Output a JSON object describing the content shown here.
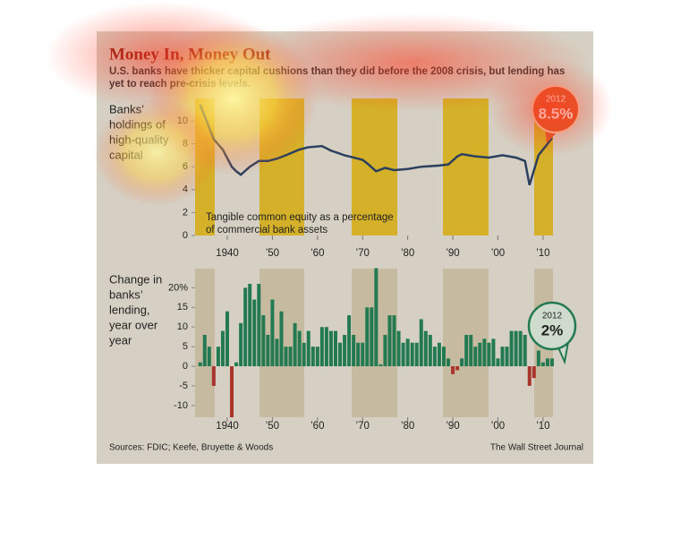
{
  "header": {
    "title": "Money In, Money Out",
    "subtitle": [
      "U.S. banks have thicker capital cushions than they did before the 2008 crisis, but lending has",
      "yet to reach pre-crisis levels."
    ]
  },
  "chart_data": [
    {
      "type": "line",
      "label": [
        "Banks’",
        "holdings of",
        "high-quality",
        "capital"
      ],
      "annotation": [
        "Tangible common equity as a percentage",
        "of commercial bank assets"
      ],
      "callout": {
        "year": "2012",
        "value": "8.5%"
      },
      "color": "#2b3f5e",
      "x": [
        1934,
        1937,
        1939,
        1941,
        1942,
        1943,
        1945,
        1947,
        1949,
        1951,
        1953,
        1956,
        1958,
        1961,
        1963,
        1966,
        1968,
        1970,
        1971,
        1973,
        1975,
        1977,
        1980,
        1983,
        1987,
        1989,
        1991,
        1992,
        1995,
        1998,
        2001,
        2004,
        2006,
        2007,
        2009,
        2011,
        2012
      ],
      "values": [
        11.4,
        8.4,
        7.5,
        6.0,
        5.6,
        5.3,
        6.0,
        6.5,
        6.5,
        6.7,
        7.0,
        7.5,
        7.7,
        7.8,
        7.4,
        7.0,
        6.8,
        6.6,
        6.3,
        5.6,
        5.9,
        5.7,
        5.8,
        6.0,
        6.1,
        6.2,
        6.9,
        7.1,
        6.9,
        6.8,
        7.0,
        6.8,
        6.5,
        4.4,
        7.0,
        8.0,
        8.5
      ],
      "xlim": [
        1933,
        2013
      ],
      "ylim": [
        0,
        12
      ],
      "yticks": [
        0,
        2,
        4,
        6,
        8,
        10
      ],
      "xticks": [
        1940,
        {
          "value": 1950,
          "label": "’50"
        },
        {
          "value": 1960,
          "label": "’60"
        },
        {
          "value": 1970,
          "label": "’70"
        },
        {
          "value": 1980,
          "label": "’80"
        },
        {
          "value": 1990,
          "label": "’90"
        },
        {
          "value": 2000,
          "label": "’00"
        },
        {
          "value": 2010,
          "label": "’10"
        }
      ]
    },
    {
      "type": "bar",
      "label": [
        "Change in",
        "banks’",
        "lending,",
        "year over",
        "year"
      ],
      "callout": {
        "year": "2012",
        "value": "2%"
      },
      "color": "#237a52",
      "negative_color": "#a8342c",
      "x": [
        1934,
        1935,
        1936,
        1937,
        1938,
        1939,
        1940,
        1941,
        1942,
        1943,
        1944,
        1945,
        1946,
        1947,
        1948,
        1949,
        1950,
        1951,
        1952,
        1953,
        1954,
        1955,
        1956,
        1957,
        1958,
        1959,
        1960,
        1961,
        1962,
        1963,
        1964,
        1965,
        1966,
        1967,
        1968,
        1969,
        1970,
        1971,
        1972,
        1973,
        1974,
        1975,
        1976,
        1977,
        1978,
        1979,
        1980,
        1981,
        1982,
        1983,
        1984,
        1985,
        1986,
        1987,
        1988,
        1989,
        1990,
        1991,
        1992,
        1993,
        1994,
        1995,
        1996,
        1997,
        1998,
        1999,
        2000,
        2001,
        2002,
        2003,
        2004,
        2005,
        2006,
        2007,
        2008,
        2009,
        2010,
        2011,
        2012
      ],
      "values": [
        1,
        8,
        5,
        -5,
        5,
        9,
        14,
        -13,
        1,
        11,
        20,
        21,
        17,
        21,
        13,
        8,
        17,
        7,
        14,
        5,
        5,
        11,
        9,
        6,
        9,
        5,
        5,
        10,
        10,
        9,
        9,
        6,
        8,
        13,
        8,
        6,
        6,
        15,
        15,
        25,
        0.5,
        8,
        13,
        13,
        9,
        6,
        7,
        6,
        6,
        12,
        9,
        8,
        5,
        6,
        5,
        2,
        -2,
        -1,
        2,
        8,
        8,
        5,
        6,
        7,
        6,
        7,
        2,
        5,
        5,
        9,
        9,
        9,
        8,
        -5,
        -3,
        4,
        1,
        2,
        2
      ],
      "xlim": [
        1933,
        2013
      ],
      "ylim": [
        -13,
        25
      ],
      "yticks": [
        {
          "value": 20,
          "label": "20%"
        },
        15,
        10,
        5,
        0,
        -5,
        -10
      ],
      "xticks": [
        1940,
        {
          "value": 1950,
          "label": "’50"
        },
        {
          "value": 1960,
          "label": "’60"
        },
        {
          "value": 1970,
          "label": "’70"
        },
        {
          "value": 1980,
          "label": "’80"
        },
        {
          "value": 1990,
          "label": "’90"
        },
        {
          "value": 2000,
          "label": "’00"
        },
        {
          "value": 2010,
          "label": "’10"
        }
      ]
    }
  ],
  "footer": {
    "source": "Sources: FDIC; Keefe, Bruyette & Woods",
    "credit": "The Wall Street Journal"
  }
}
